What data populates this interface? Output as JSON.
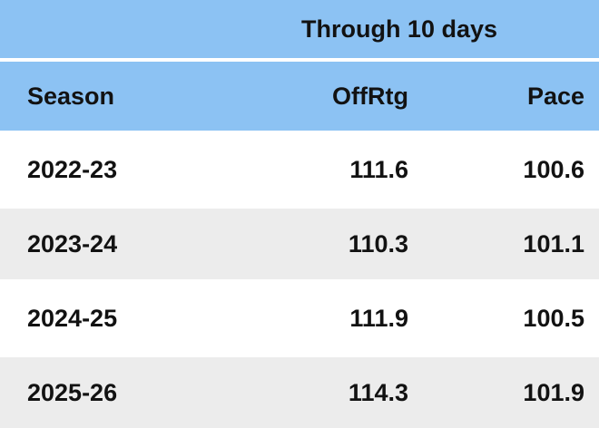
{
  "colors": {
    "header_blue": "#8cc2f3",
    "row_gray": "#ececec",
    "row_white": "#ffffff",
    "text": "#121212"
  },
  "chart_data": {
    "type": "table",
    "title": "Through 10 days",
    "columns": [
      "Season",
      "OffRtg",
      "Pace"
    ],
    "rows": [
      [
        "2022-23",
        "111.6",
        "100.6"
      ],
      [
        "2023-24",
        "110.3",
        "101.1"
      ],
      [
        "2024-25",
        "111.9",
        "100.5"
      ],
      [
        "2025-26",
        "114.3",
        "101.9"
      ]
    ],
    "layout": {
      "striped": true,
      "title_spans": "value-columns",
      "header_background": "#8cc2f3",
      "stripe_colors": [
        "#ffffff",
        "#ececec"
      ]
    }
  }
}
